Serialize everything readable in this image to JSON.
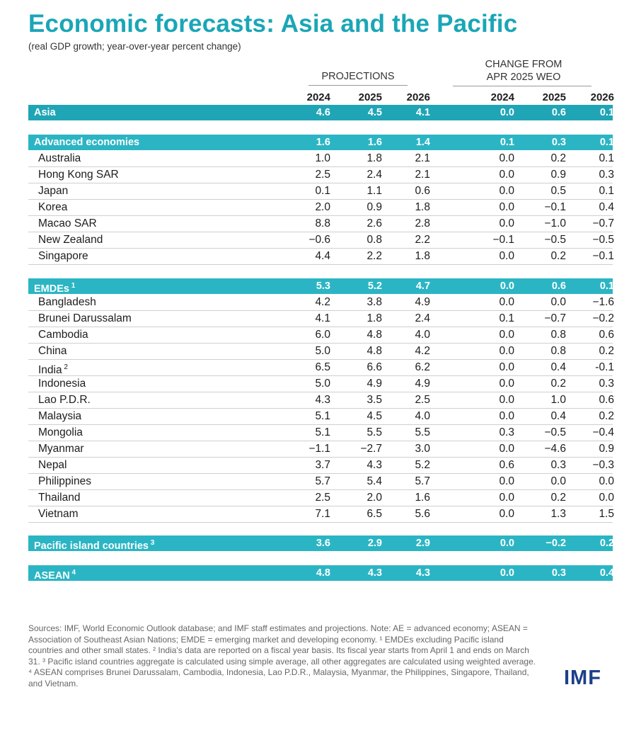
{
  "title": "Economic forecasts: Asia and the Pacific",
  "subtitle": "(real GDP growth; year-over-year percent change)",
  "projections_label": "PROJECTIONS",
  "change_label_line1": "CHANGE FROM",
  "change_label_line2": "APR 2025 WEO",
  "logo": "IMF",
  "footnote": "Sources: IMF, World Economic Outlook database; and IMF staff estimates and projections. Note: AE = advanced economy; ASEAN = Association of Southeast Asian Nations; EMDE = emerging market and developing economy. ¹ EMDEs excluding Pacific island countries and other small states. ² India's data are reported on a fiscal year basis. Its fiscal year starts from April 1 and ends on March 31. ³ Pacific island countries aggregate is calculated using simple average, all other aggregates are calculated using weighted average. ⁴ ASEAN comprises Brunei Darussalam, Cambodia, Indonesia, Lao P.D.R., Malaysia, Myanmar, the Philippines, Singapore, Thailand, and Vietnam.",
  "colors": {
    "accent": "#1aa6b7",
    "band": "#2bb5c4",
    "logo": "#1d3f8a"
  },
  "chart_data": {
    "type": "table",
    "title": "Economic forecasts: Asia and the Pacific",
    "subtitle": "(real GDP growth; year-over-year percent change)",
    "column_groups": [
      "PROJECTIONS",
      "CHANGE FROM APR 2025 WEO"
    ],
    "columns": [
      "2024",
      "2025",
      "2026",
      "2024",
      "2025",
      "2026"
    ],
    "rows": [
      {
        "name": "Asia",
        "sup": "",
        "type": "aggregate",
        "values": [
          "4.6",
          "4.5",
          "4.1",
          "0.0",
          "0.6",
          "0.1"
        ]
      },
      {
        "name": "Advanced economies",
        "sup": "",
        "type": "aggregate",
        "values": [
          "1.6",
          "1.6",
          "1.4",
          "0.1",
          "0.3",
          "0.1"
        ]
      },
      {
        "name": "Australia",
        "sup": "",
        "type": "country",
        "values": [
          "1.0",
          "1.8",
          "2.1",
          "0.0",
          "0.2",
          "0.1"
        ]
      },
      {
        "name": "Hong Kong SAR",
        "sup": "",
        "type": "country",
        "values": [
          "2.5",
          "2.4",
          "2.1",
          "0.0",
          "0.9",
          "0.3"
        ]
      },
      {
        "name": "Japan",
        "sup": "",
        "type": "country",
        "values": [
          "0.1",
          "1.1",
          "0.6",
          "0.0",
          "0.5",
          "0.1"
        ]
      },
      {
        "name": "Korea",
        "sup": "",
        "type": "country",
        "values": [
          "2.0",
          "0.9",
          "1.8",
          "0.0",
          "−0.1",
          "0.4"
        ]
      },
      {
        "name": "Macao SAR",
        "sup": "",
        "type": "country",
        "values": [
          "8.8",
          "2.6",
          "2.8",
          "0.0",
          "−1.0",
          "−0.7"
        ]
      },
      {
        "name": "New Zealand",
        "sup": "",
        "type": "country",
        "values": [
          "−0.6",
          "0.8",
          "2.2",
          "−0.1",
          "−0.5",
          "−0.5"
        ]
      },
      {
        "name": "Singapore",
        "sup": "",
        "type": "country",
        "values": [
          "4.4",
          "2.2",
          "1.8",
          "0.0",
          "0.2",
          "−0.1"
        ]
      },
      {
        "name": "EMDEs",
        "sup": "1",
        "type": "aggregate",
        "values": [
          "5.3",
          "5.2",
          "4.7",
          "0.0",
          "0.6",
          "0.1"
        ]
      },
      {
        "name": "Bangladesh",
        "sup": "",
        "type": "country",
        "values": [
          "4.2",
          "3.8",
          "4.9",
          "0.0",
          "0.0",
          "−1.6"
        ]
      },
      {
        "name": "Brunei Darussalam",
        "sup": "",
        "type": "country",
        "values": [
          "4.1",
          "1.8",
          "2.4",
          "0.1",
          "−0.7",
          "−0.2"
        ]
      },
      {
        "name": "Cambodia",
        "sup": "",
        "type": "country",
        "values": [
          "6.0",
          "4.8",
          "4.0",
          "0.0",
          "0.8",
          "0.6"
        ]
      },
      {
        "name": "China",
        "sup": "",
        "type": "country",
        "values": [
          "5.0",
          "4.8",
          "4.2",
          "0.0",
          "0.8",
          "0.2"
        ]
      },
      {
        "name": "India",
        "sup": "2",
        "type": "country",
        "values": [
          "6.5",
          "6.6",
          "6.2",
          "0.0",
          "0.4",
          "-0.1"
        ]
      },
      {
        "name": "Indonesia",
        "sup": "",
        "type": "country",
        "values": [
          "5.0",
          "4.9",
          "4.9",
          "0.0",
          "0.2",
          "0.3"
        ]
      },
      {
        "name": "Lao P.D.R.",
        "sup": "",
        "type": "country",
        "values": [
          "4.3",
          "3.5",
          "2.5",
          "0.0",
          "1.0",
          "0.6"
        ]
      },
      {
        "name": "Malaysia",
        "sup": "",
        "type": "country",
        "values": [
          "5.1",
          "4.5",
          "4.0",
          "0.0",
          "0.4",
          "0.2"
        ]
      },
      {
        "name": "Mongolia",
        "sup": "",
        "type": "country",
        "values": [
          "5.1",
          "5.5",
          "5.5",
          "0.3",
          "−0.5",
          "−0.4"
        ]
      },
      {
        "name": "Myanmar",
        "sup": "",
        "type": "country",
        "values": [
          "−1.1",
          "−2.7",
          "3.0",
          "0.0",
          "−4.6",
          "0.9"
        ]
      },
      {
        "name": "Nepal",
        "sup": "",
        "type": "country",
        "values": [
          "3.7",
          "4.3",
          "5.2",
          "0.6",
          "0.3",
          "−0.3"
        ]
      },
      {
        "name": "Philippines",
        "sup": "",
        "type": "country",
        "values": [
          "5.7",
          "5.4",
          "5.7",
          "0.0",
          "0.0",
          "0.0"
        ]
      },
      {
        "name": "Thailand",
        "sup": "",
        "type": "country",
        "values": [
          "2.5",
          "2.0",
          "1.6",
          "0.0",
          "0.2",
          "0.0"
        ]
      },
      {
        "name": "Vietnam",
        "sup": "",
        "type": "country",
        "values": [
          "7.1",
          "6.5",
          "5.6",
          "0.0",
          "1.3",
          "1.5"
        ]
      },
      {
        "name": "Pacific island countries",
        "sup": "3",
        "type": "aggregate",
        "values": [
          "3.6",
          "2.9",
          "2.9",
          "0.0",
          "−0.2",
          "0.2"
        ]
      },
      {
        "name": "ASEAN",
        "sup": "4",
        "type": "aggregate",
        "values": [
          "4.8",
          "4.3",
          "4.3",
          "0.0",
          "0.3",
          "0.4"
        ]
      }
    ]
  }
}
